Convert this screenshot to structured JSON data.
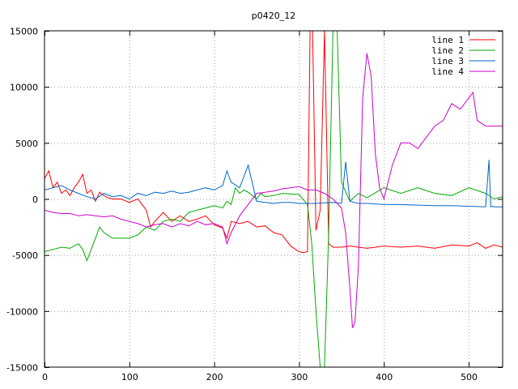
{
  "chart_data": {
    "type": "line",
    "title": "p0420_12",
    "xlabel": "",
    "ylabel": "",
    "xlim": [
      0,
      540
    ],
    "ylim": [
      -15000,
      15000
    ],
    "xticks": [
      0,
      100,
      200,
      300,
      400,
      500
    ],
    "yticks": [
      -15000,
      -10000,
      -5000,
      0,
      5000,
      10000,
      15000
    ],
    "xtick_labels": [
      "0",
      "100",
      "200",
      "300",
      "400",
      "500"
    ],
    "ytick_labels": [
      "-15000",
      "-10000",
      "-5000",
      "0",
      "5000",
      "10000",
      "15000"
    ],
    "grid": true,
    "legend_position": "top-right",
    "series": [
      {
        "name": "line 1",
        "color": "#ff0000",
        "x": [
          0,
          5,
          10,
          15,
          20,
          25,
          30,
          35,
          40,
          45,
          50,
          55,
          60,
          65,
          70,
          75,
          80,
          90,
          100,
          110,
          120,
          125,
          130,
          140,
          150,
          160,
          170,
          180,
          190,
          200,
          210,
          215,
          220,
          230,
          240,
          250,
          260,
          270,
          280,
          290,
          300,
          305,
          310,
          313,
          316,
          320,
          325,
          330,
          335,
          340,
          350,
          360,
          380,
          400,
          420,
          440,
          460,
          480,
          500,
          510,
          520,
          530,
          540
        ],
        "y": [
          1800,
          2500,
          1000,
          1500,
          500,
          800,
          300,
          1000,
          1500,
          2200,
          500,
          800,
          -200,
          600,
          300,
          100,
          0,
          0,
          -300,
          0,
          -1000,
          -2500,
          -2000,
          -1200,
          -2000,
          -1500,
          -2000,
          -1800,
          -1500,
          -2300,
          -2600,
          -3500,
          -2000,
          -2200,
          -2000,
          -2500,
          -2400,
          -3000,
          -3200,
          -4200,
          -4700,
          -4800,
          -4700,
          15000,
          15000,
          -2800,
          -1000,
          15000,
          -4000,
          -4300,
          -4300,
          -4200,
          -4400,
          -4200,
          -4300,
          -4200,
          -4400,
          -4100,
          -4200,
          -3900,
          -4400,
          -4100,
          -4300
        ]
      },
      {
        "name": "line 2",
        "color": "#00aa00",
        "x": [
          0,
          10,
          20,
          30,
          40,
          45,
          50,
          60,
          65,
          70,
          80,
          90,
          100,
          110,
          120,
          130,
          140,
          150,
          160,
          170,
          180,
          190,
          200,
          210,
          215,
          220,
          225,
          230,
          235,
          240,
          245,
          250,
          255,
          260,
          270,
          280,
          300,
          310,
          315,
          320,
          325,
          330,
          335,
          340,
          345,
          350,
          360,
          370,
          380,
          400,
          420,
          440,
          460,
          480,
          500,
          520,
          530,
          540
        ],
        "y": [
          -4700,
          -4500,
          -4300,
          -4400,
          -4000,
          -4500,
          -5500,
          -3500,
          -2500,
          -3000,
          -3500,
          -3500,
          -3500,
          -3200,
          -2500,
          -2800,
          -2000,
          -1800,
          -2000,
          -1200,
          -1000,
          -800,
          -600,
          -800,
          -200,
          -500,
          1000,
          500,
          800,
          600,
          300,
          0,
          500,
          200,
          300,
          500,
          400,
          -500,
          -4000,
          -10000,
          -15000,
          -15000,
          -3000,
          15000,
          15000,
          1500,
          -200,
          500,
          100,
          1000,
          500,
          1000,
          500,
          300,
          1000,
          500,
          0,
          200
        ]
      },
      {
        "name": "line 3",
        "color": "#0066cc",
        "x": [
          0,
          10,
          20,
          30,
          40,
          50,
          60,
          70,
          80,
          90,
          100,
          110,
          120,
          130,
          140,
          150,
          160,
          170,
          180,
          190,
          200,
          210,
          215,
          220,
          230,
          240,
          250,
          260,
          270,
          280,
          290,
          300,
          310,
          320,
          330,
          340,
          350,
          355,
          360,
          370,
          380,
          400,
          420,
          440,
          460,
          480,
          500,
          520,
          524,
          526,
          528,
          530,
          540
        ],
        "y": [
          800,
          1000,
          1200,
          800,
          500,
          200,
          0,
          500,
          200,
          300,
          0,
          500,
          300,
          600,
          500,
          700,
          500,
          600,
          800,
          1000,
          800,
          1200,
          2500,
          1500,
          1000,
          3000,
          -200,
          -300,
          -400,
          -300,
          -300,
          -400,
          -400,
          -400,
          -350,
          -300,
          -400,
          3300,
          -200,
          -400,
          -400,
          -500,
          -500,
          -550,
          -600,
          -600,
          -650,
          -700,
          3500,
          -700,
          -650,
          -700,
          -700
        ]
      },
      {
        "name": "line 4",
        "color": "#cc00cc",
        "x": [
          0,
          10,
          20,
          30,
          40,
          50,
          60,
          70,
          80,
          90,
          100,
          110,
          120,
          130,
          140,
          150,
          160,
          170,
          180,
          190,
          200,
          210,
          215,
          220,
          230,
          240,
          250,
          260,
          270,
          280,
          290,
          300,
          310,
          320,
          330,
          340,
          350,
          355,
          360,
          363,
          366,
          370,
          375,
          380,
          385,
          390,
          395,
          400,
          410,
          420,
          430,
          440,
          450,
          460,
          470,
          480,
          490,
          500,
          505,
          510,
          520,
          530,
          540
        ],
        "y": [
          -1000,
          -1200,
          -1300,
          -1300,
          -1500,
          -1400,
          -1500,
          -1600,
          -1500,
          -1800,
          -2000,
          -2200,
          -2500,
          -2300,
          -2200,
          -2500,
          -2200,
          -2400,
          -2000,
          -2300,
          -2200,
          -2500,
          -4000,
          -3000,
          -1500,
          -500,
          500,
          600,
          700,
          900,
          1000,
          1100,
          800,
          800,
          500,
          0,
          -800,
          -3000,
          -8000,
          -11500,
          -11000,
          -6000,
          9000,
          13000,
          11000,
          4000,
          1000,
          0,
          3000,
          5000,
          5000,
          4500,
          5500,
          6500,
          7000,
          8500,
          8000,
          9000,
          9500,
          7000,
          6500,
          6500,
          6500
        ]
      }
    ]
  }
}
